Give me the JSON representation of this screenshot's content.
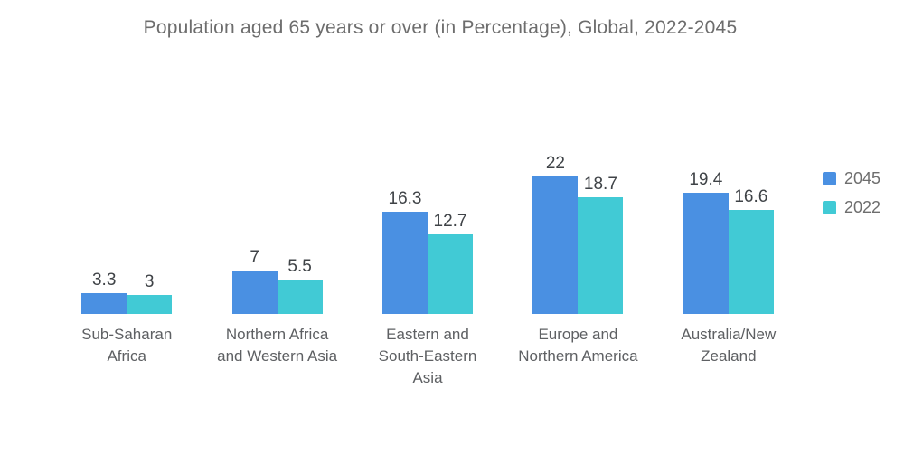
{
  "chart_data": {
    "type": "bar",
    "title": "Population aged 65 years or over (in Percentage), Global, 2022-2045",
    "categories": [
      "Sub-Saharan\nAfrica",
      "Northern Africa\nand Western Asia",
      "Eastern and\nSouth-Eastern\nAsia",
      "Europe and\nNorthern America",
      "Australia/New\nZealand"
    ],
    "series": [
      {
        "name": "2045",
        "color": "#4A90E2",
        "values": [
          3.3,
          7,
          16.3,
          22,
          19.4
        ]
      },
      {
        "name": "2022",
        "color": "#41CAD5",
        "values": [
          3,
          5.5,
          12.7,
          18.7,
          16.6
        ]
      }
    ],
    "ylim": [
      0,
      22
    ],
    "grid": false,
    "axes_visible": false,
    "value_labels_shown": true,
    "legend_position": "right",
    "background_color": "#ffffff",
    "title_color": "#6d6d6d",
    "value_label_color": "#3f4347",
    "category_label_color": "#5e6063"
  }
}
